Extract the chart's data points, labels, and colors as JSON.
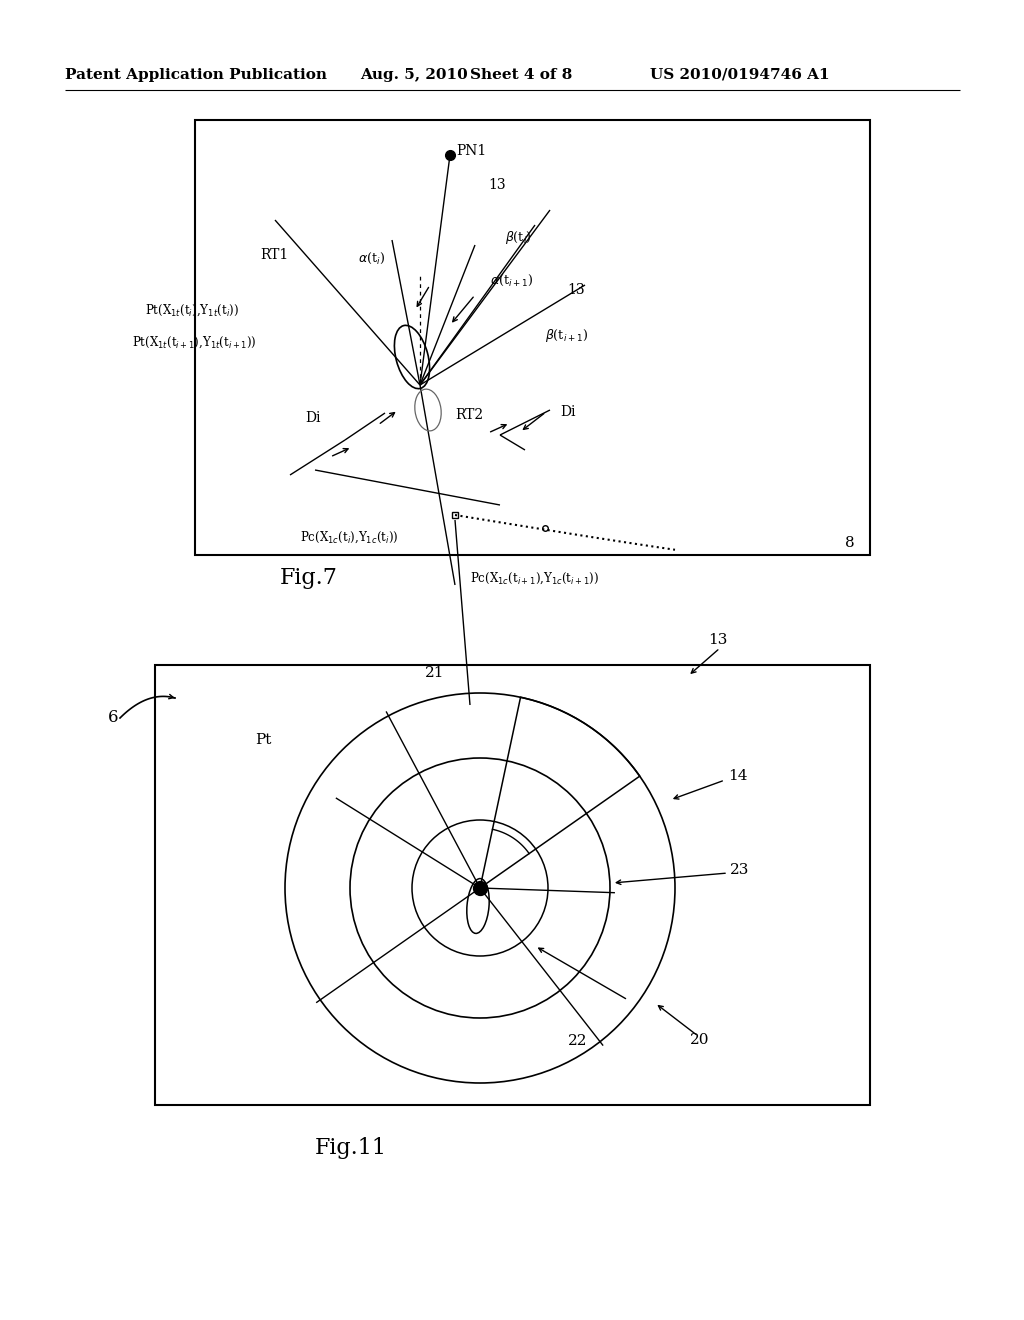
{
  "bg_color": "#ffffff",
  "header_text": "Patent Application Publication",
  "header_date": "Aug. 5, 2010",
  "header_sheet": "Sheet 4 of 8",
  "header_patent": "US 2010/0194746 A1"
}
